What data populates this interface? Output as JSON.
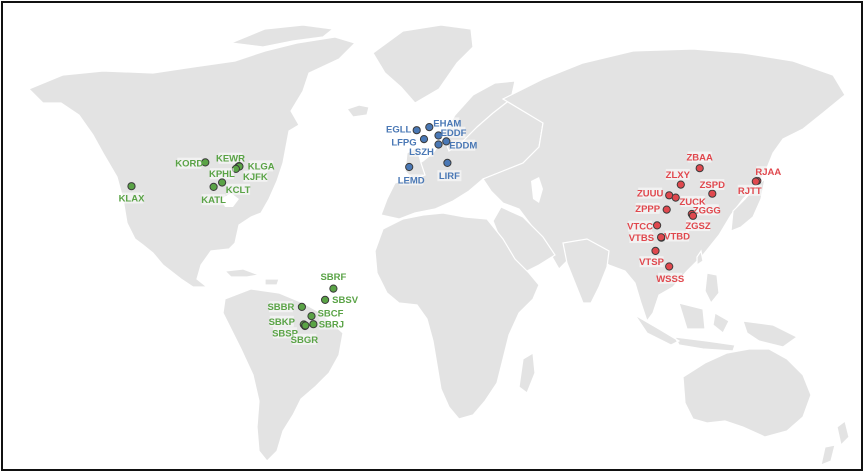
{
  "colors": {
    "background": "#ffffff",
    "land": "#e3e3e3",
    "border": "#ffffff",
    "frame": "#111111",
    "americas": "#5aa346",
    "europe": "#4a78b5",
    "asia": "#e0484e"
  },
  "airports": [
    {
      "code": "KLAX",
      "region": "americas",
      "lon": -118.4,
      "lat": 33.9,
      "label_dx": 0,
      "label_dy": 12
    },
    {
      "code": "KORD",
      "region": "americas",
      "lon": -87.9,
      "lat": 41.98,
      "label_dx": -16,
      "label_dy": 1
    },
    {
      "code": "KEWR",
      "region": "americas",
      "lon": -74.17,
      "lat": 40.69,
      "label_dx": -8,
      "label_dy": -8
    },
    {
      "code": "KLGA",
      "region": "americas",
      "lon": -73.87,
      "lat": 40.78,
      "label_dx": 22,
      "label_dy": 0
    },
    {
      "code": "KJFK",
      "region": "americas",
      "lon": -73.78,
      "lat": 40.64,
      "label_dx": 16,
      "label_dy": 10
    },
    {
      "code": "KPHL",
      "region": "americas",
      "lon": -75.24,
      "lat": 39.87,
      "label_dx": -14,
      "label_dy": 5
    },
    {
      "code": "KCLT",
      "region": "americas",
      "lon": -80.94,
      "lat": 35.21,
      "label_dx": 16,
      "label_dy": 7
    },
    {
      "code": "KATL",
      "region": "americas",
      "lon": -84.43,
      "lat": 33.64,
      "label_dx": 0,
      "label_dy": 13
    },
    {
      "code": "SBRF",
      "region": "americas",
      "lon": -34.92,
      "lat": -8.13,
      "label_dx": 0,
      "label_dy": -12
    },
    {
      "code": "SBSV",
      "region": "americas",
      "lon": -38.32,
      "lat": -12.91,
      "label_dx": 20,
      "label_dy": 0
    },
    {
      "code": "SBBR",
      "region": "americas",
      "lon": -47.92,
      "lat": -15.87,
      "label_dx": -21,
      "label_dy": 0
    },
    {
      "code": "SBCF",
      "region": "americas",
      "lon": -43.97,
      "lat": -19.62,
      "label_dx": 19,
      "label_dy": -3
    },
    {
      "code": "SBKP",
      "region": "americas",
      "lon": -47.13,
      "lat": -23.0,
      "label_dx": -22,
      "label_dy": -3
    },
    {
      "code": "SBRJ",
      "region": "americas",
      "lon": -43.16,
      "lat": -22.91,
      "label_dx": 18,
      "label_dy": 0
    },
    {
      "code": "SBSP",
      "region": "americas",
      "lon": -46.65,
      "lat": -23.63,
      "label_dx": -20,
      "label_dy": 7
    },
    {
      "code": "SBGR",
      "region": "americas",
      "lon": -46.47,
      "lat": -23.43,
      "label_dx": -1,
      "label_dy": 14
    },
    {
      "code": "EGLL",
      "region": "europe",
      "lon": -0.45,
      "lat": 51.47,
      "label_dx": -18,
      "label_dy": -1
    },
    {
      "code": "EHAM",
      "region": "europe",
      "lon": 4.76,
      "lat": 52.31,
      "label_dx": 18,
      "label_dy": -4
    },
    {
      "code": "EDDF",
      "region": "europe",
      "lon": 8.57,
      "lat": 50.03,
      "label_dx": 15,
      "label_dy": -3
    },
    {
      "code": "LFPG",
      "region": "europe",
      "lon": 2.55,
      "lat": 49.0,
      "label_dx": -20,
      "label_dy": 3
    },
    {
      "code": "EDDM",
      "region": "europe",
      "lon": 11.79,
      "lat": 48.35,
      "label_dx": 17,
      "label_dy": 4
    },
    {
      "code": "LSZH",
      "region": "europe",
      "lon": 8.55,
      "lat": 47.46,
      "label_dx": -17,
      "label_dy": 7
    },
    {
      "code": "LEMD",
      "region": "europe",
      "lon": -3.57,
      "lat": 40.47,
      "label_dx": 2,
      "label_dy": 13
    },
    {
      "code": "LIRF",
      "region": "europe",
      "lon": 12.25,
      "lat": 41.8,
      "label_dx": 2,
      "label_dy": 13
    },
    {
      "code": "ZBAA",
      "region": "asia",
      "lon": 116.6,
      "lat": 40.08,
      "label_dx": 0,
      "label_dy": -11
    },
    {
      "code": "ZLXY",
      "region": "asia",
      "lon": 108.75,
      "lat": 34.45,
      "label_dx": -3,
      "label_dy": -10
    },
    {
      "code": "ZSPD",
      "region": "asia",
      "lon": 121.8,
      "lat": 31.14,
      "label_dx": 0,
      "label_dy": -9
    },
    {
      "code": "ZUUU",
      "region": "asia",
      "lon": 103.95,
      "lat": 30.58,
      "label_dx": -19,
      "label_dy": -2
    },
    {
      "code": "ZUCK",
      "region": "asia",
      "lon": 106.64,
      "lat": 29.72,
      "label_dx": 17,
      "label_dy": 4
    },
    {
      "code": "ZPPP",
      "region": "asia",
      "lon": 102.93,
      "lat": 25.1,
      "label_dx": -19,
      "label_dy": -1
    },
    {
      "code": "ZGGG",
      "region": "asia",
      "lon": 113.3,
      "lat": 23.39,
      "label_dx": 15,
      "label_dy": -4
    },
    {
      "code": "ZGSZ",
      "region": "asia",
      "lon": 113.81,
      "lat": 22.64,
      "label_dx": 5,
      "label_dy": 10
    },
    {
      "code": "VTCC",
      "region": "asia",
      "lon": 98.96,
      "lat": 18.77,
      "label_dx": -17,
      "label_dy": 1
    },
    {
      "code": "VTBS",
      "region": "asia",
      "lon": 100.75,
      "lat": 13.69,
      "label_dx": -20,
      "label_dy": 0
    },
    {
      "code": "VTBD",
      "region": "asia",
      "lon": 100.6,
      "lat": 13.91,
      "label_dx": 16,
      "label_dy": -1
    },
    {
      "code": "VTSP",
      "region": "asia",
      "lon": 98.32,
      "lat": 8.11,
      "label_dx": -4,
      "label_dy": 11
    },
    {
      "code": "WSSS",
      "region": "asia",
      "lon": 103.99,
      "lat": 1.36,
      "label_dx": 1,
      "label_dy": 12
    },
    {
      "code": "RJAA",
      "region": "asia",
      "lon": 140.39,
      "lat": 35.77,
      "label_dx": 11,
      "label_dy": -9
    },
    {
      "code": "RJTT",
      "region": "asia",
      "lon": 139.78,
      "lat": 35.55,
      "label_dx": -6,
      "label_dy": 9
    }
  ]
}
